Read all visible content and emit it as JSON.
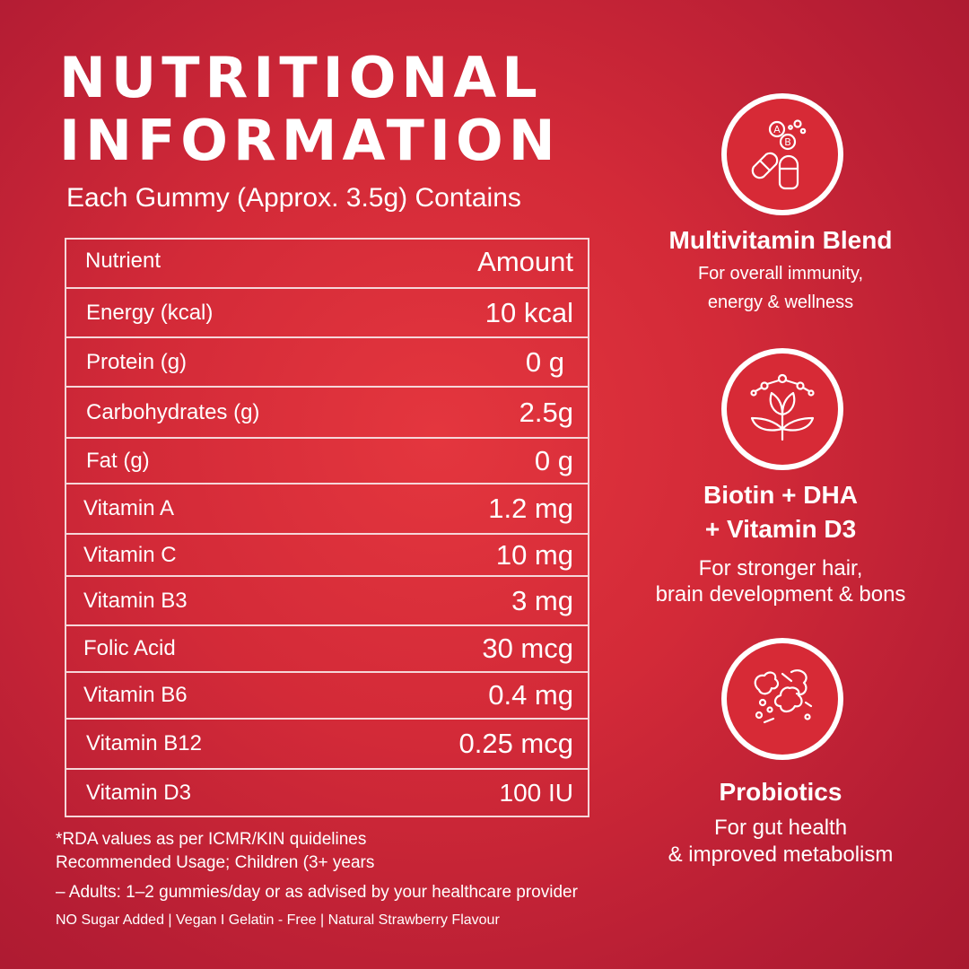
{
  "title": {
    "line1": "NUTRITIONAL",
    "line2": "INFORMATION"
  },
  "subtitle": "Each Gummy (Approx. 3.5g) Contains",
  "table": {
    "header": {
      "nutrient": "Nutrient",
      "amount": "Amount"
    },
    "rows": [
      {
        "nutrient": "Energy (kcal)",
        "amount": "10 kcal"
      },
      {
        "nutrient": "Protein (g)",
        "amount": "0 g"
      },
      {
        "nutrient": "Carbohydrates (g)",
        "amount": "2.5g"
      },
      {
        "nutrient": "Fat (g)",
        "amount": "0 g"
      },
      {
        "nutrient": "Vitamin A",
        "amount": "1.2 mg"
      },
      {
        "nutrient": "Vitamin C",
        "amount": "10 mg"
      },
      {
        "nutrient": "Vitamin B3",
        "amount": "3 mg"
      },
      {
        "nutrient": "Folic Acid",
        "amount": "30 mcg"
      },
      {
        "nutrient": "Vitamin B6",
        "amount": "0.4 mg"
      },
      {
        "nutrient": "Vitamin B12",
        "amount": "0.25 mcg"
      },
      {
        "nutrient": "Vitamin D3",
        "amount": "100 IU"
      }
    ]
  },
  "notes": {
    "rda": "*RDA values as per ICMR/KIN quidelines",
    "usage": "Recommended Usage; Children (3+ years",
    "adults": "– Adults: 1–2 gummies/day or as advised by your healthcare provider",
    "claims": "NO Sugar Added | Vegan I Gelatin - Free | Natural Strawberry Flavour"
  },
  "benefits": [
    {
      "icon": "vitamin-capsules-icon",
      "title_lines": [
        "Multivitamin Blend"
      ],
      "desc_lines": [
        "For overall immunity,",
        "energy & wellness"
      ]
    },
    {
      "icon": "plant-molecule-icon",
      "title_lines": [
        "Biotin + DHA",
        "+ Vitamin D3"
      ],
      "desc_lines": [
        "For stronger hair,",
        "brain development & bons"
      ]
    },
    {
      "icon": "probiotics-icon",
      "title_lines": [
        "Probiotics"
      ],
      "desc_lines": [
        "For gut health",
        "& improved metabolism"
      ]
    }
  ],
  "colors": {
    "background": "#d32a38",
    "icon_fill": "#d72a36",
    "text": "#ffffff",
    "table_border": "#f6d6d9"
  }
}
